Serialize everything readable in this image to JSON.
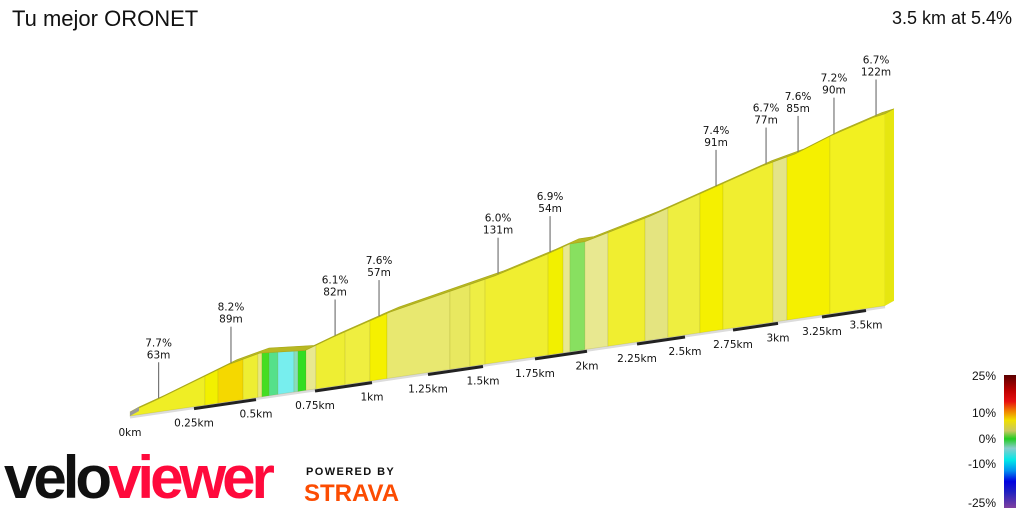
{
  "header": {
    "title": "Tu mejor ORONET",
    "summary": "3.5 km at 5.4%"
  },
  "chart_data": {
    "type": "area",
    "title": "Tu mejor ORONET",
    "subtitle": "3.5 km at 5.4%",
    "xlabel": "",
    "ylabel": "",
    "x_ticks": [
      "0km",
      "0.25km",
      "0.5km",
      "0.75km",
      "1km",
      "1.25km",
      "1.5km",
      "1.75km",
      "2km",
      "2.25km",
      "2.5km",
      "2.75km",
      "3km",
      "3.25km",
      "3.5km"
    ],
    "x_tick_values": [
      0,
      0.25,
      0.5,
      0.75,
      1,
      1.25,
      1.5,
      1.75,
      2,
      2.25,
      2.5,
      2.75,
      3,
      3.25,
      3.5
    ],
    "profile_km": [
      0,
      0.1,
      0.387,
      0.517,
      0.708,
      0.825,
      1.018,
      1.08,
      1.558,
      1.808,
      1.918,
      1.99,
      2.318,
      2.646,
      2.917,
      3.097,
      3.301,
      3.54,
      3.608
    ],
    "profile_elev_m": [
      0,
      8,
      33,
      40,
      36,
      45,
      58,
      62,
      83,
      97,
      104,
      104,
      120,
      139,
      154,
      161,
      174,
      186,
      188
    ],
    "bands": [
      {
        "from": 0,
        "to": 0.294,
        "color": "#efee25"
      },
      {
        "from": 0.294,
        "to": 0.347,
        "color": "#f2f000"
      },
      {
        "from": 0.347,
        "to": 0.448,
        "color": "#f5d800"
      },
      {
        "from": 0.448,
        "to": 0.508,
        "color": "#eeee33"
      },
      {
        "from": 0.508,
        "to": 0.525,
        "color": "#e8e880"
      },
      {
        "from": 0.525,
        "to": 0.555,
        "color": "#44dd22"
      },
      {
        "from": 0.555,
        "to": 0.593,
        "color": "#55e08a"
      },
      {
        "from": 0.593,
        "to": 0.661,
        "color": "#77eeee"
      },
      {
        "from": 0.661,
        "to": 0.678,
        "color": "#88ddbb"
      },
      {
        "from": 0.678,
        "to": 0.712,
        "color": "#33dd22"
      },
      {
        "from": 0.712,
        "to": 0.754,
        "color": "#e8e890"
      },
      {
        "from": 0.754,
        "to": 0.882,
        "color": "#eeee33"
      },
      {
        "from": 0.882,
        "to": 0.991,
        "color": "#efee40"
      },
      {
        "from": 0.991,
        "to": 1.067,
        "color": "#f5f000"
      },
      {
        "from": 1.067,
        "to": 1.35,
        "color": "#e8e870"
      },
      {
        "from": 1.35,
        "to": 1.441,
        "color": "#e8e860"
      },
      {
        "from": 1.441,
        "to": 1.51,
        "color": "#eeee44"
      },
      {
        "from": 1.51,
        "to": 1.813,
        "color": "#f0ee30"
      },
      {
        "from": 1.813,
        "to": 1.885,
        "color": "#f2f000"
      },
      {
        "from": 1.885,
        "to": 1.918,
        "color": "#e8e890"
      },
      {
        "from": 1.918,
        "to": 1.99,
        "color": "#88e060"
      },
      {
        "from": 1.99,
        "to": 2.105,
        "color": "#e8e890"
      },
      {
        "from": 2.105,
        "to": 2.292,
        "color": "#f0ee30"
      },
      {
        "from": 2.292,
        "to": 2.411,
        "color": "#e4e480"
      },
      {
        "from": 2.411,
        "to": 2.578,
        "color": "#eeee40"
      },
      {
        "from": 2.578,
        "to": 2.698,
        "color": "#f5f000"
      },
      {
        "from": 2.698,
        "to": 2.972,
        "color": "#f0ee30"
      },
      {
        "from": 2.972,
        "to": 3.051,
        "color": "#e4e488"
      },
      {
        "from": 3.051,
        "to": 3.295,
        "color": "#f5f000"
      },
      {
        "from": 3.295,
        "to": 3.608,
        "color": "#f2f020"
      }
    ],
    "annotations": [
      {
        "km": 0.1,
        "gradient": "7.7%",
        "length": "63m"
      },
      {
        "km": 0.387,
        "gradient": "8.2%",
        "length": "89m"
      },
      {
        "km": 0.825,
        "gradient": "6.1%",
        "length": "82m"
      },
      {
        "km": 1.018,
        "gradient": "7.6%",
        "length": "57m"
      },
      {
        "km": 1.558,
        "gradient": "6.0%",
        "length": "131m"
      },
      {
        "km": 1.808,
        "gradient": "6.9%",
        "length": "54m"
      },
      {
        "km": 2.646,
        "gradient": "7.4%",
        "length": "91m"
      },
      {
        "km": 2.917,
        "gradient": "6.7%",
        "length": "77m"
      },
      {
        "km": 3.097,
        "gradient": "7.6%",
        "length": "85m"
      },
      {
        "km": 3.301,
        "gradient": "7.2%",
        "length": "90m"
      },
      {
        "km": 3.54,
        "gradient": "6.7%",
        "length": "122m"
      }
    ],
    "top_color": "#b8b822",
    "legend": {
      "labels": [
        "25%",
        "10%",
        "0%",
        "-10%",
        "-25%"
      ],
      "values": [
        25,
        10,
        0,
        -10,
        -25
      ],
      "range": [
        -25,
        25
      ]
    },
    "grid": false
  },
  "branding": {
    "logo_velo": "velo",
    "logo_viewer": "viewer",
    "powered_by": "POWERED BY",
    "strava": "STRAVA"
  }
}
